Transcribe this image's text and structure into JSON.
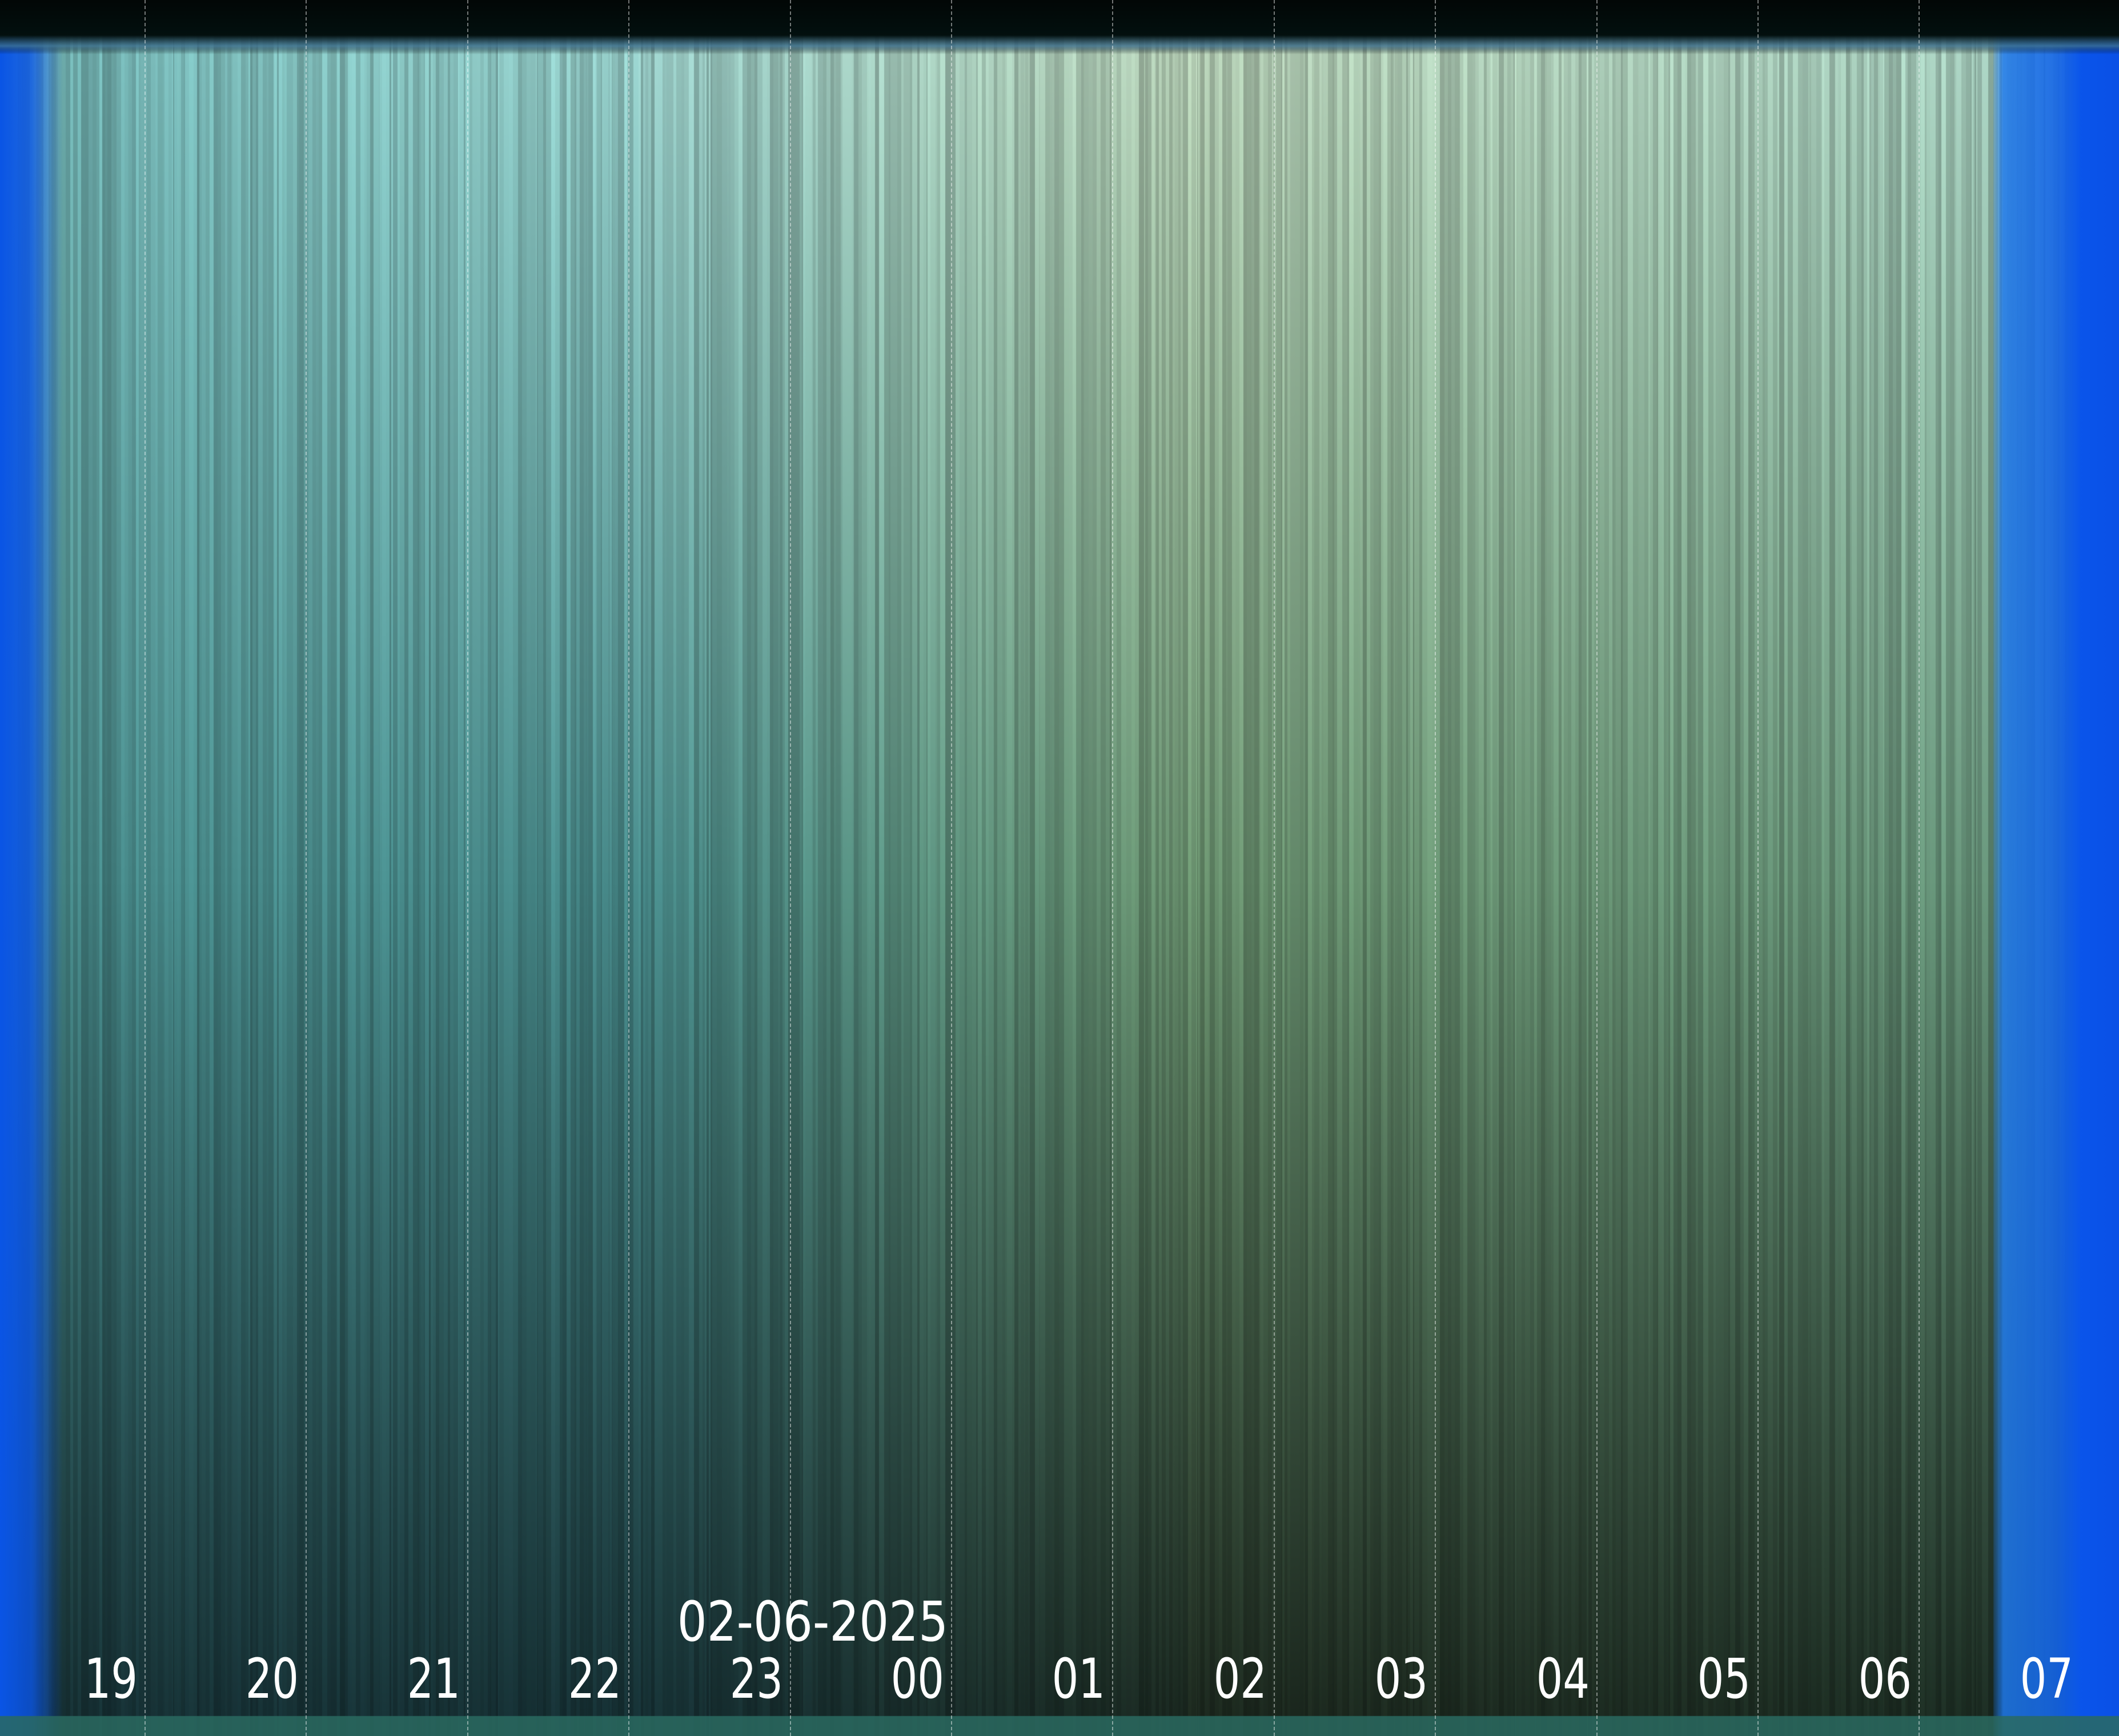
{
  "image": {
    "kind": "keogram",
    "date_label": "02-06-2025",
    "hour_labels": [
      "19",
      "20",
      "21",
      "22",
      "23",
      "00",
      "01",
      "02",
      "03",
      "04",
      "05",
      "06",
      "07"
    ],
    "colors": {
      "edge_blue": "#0a55e6",
      "top_band": "#020706",
      "sky_upper_left": "#80bab4",
      "sky_upper_mid": "#b6cfb9",
      "sky_lower_left": "#17302f",
      "sky_lower_right": "#1c2b1e",
      "bottom_band": "#2a6a60",
      "label_text": "#ffffff"
    }
  }
}
